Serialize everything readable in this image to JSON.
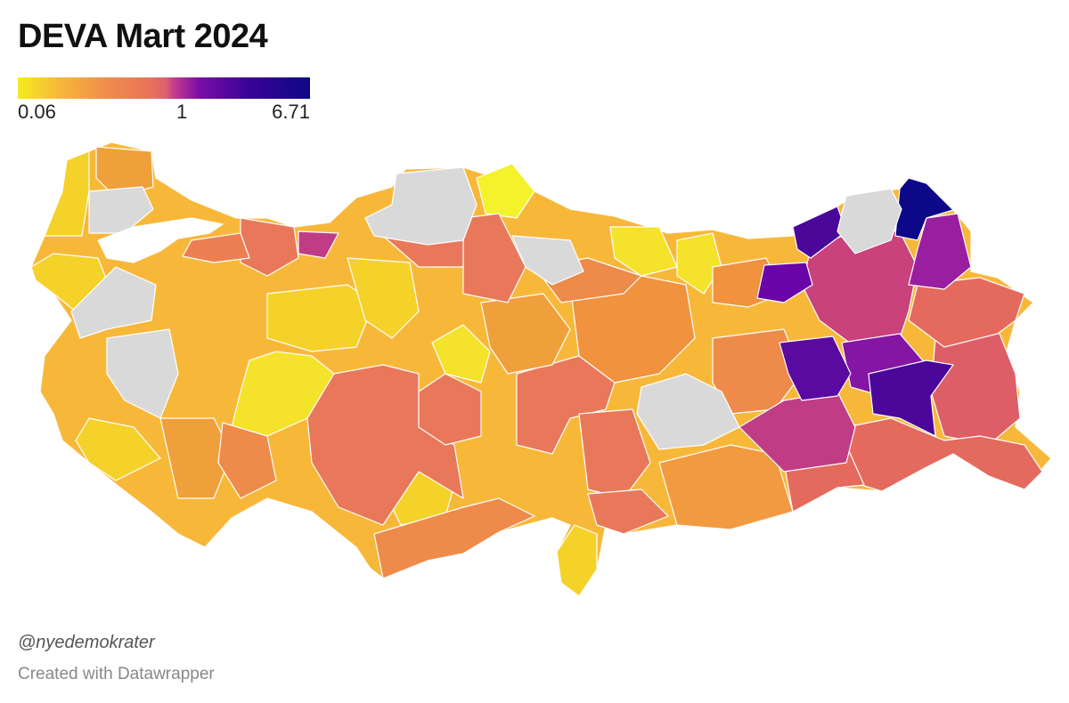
{
  "header": {
    "title": "DEVA Mart 2024"
  },
  "legend": {
    "min_label": "0.06",
    "mid_label": "1",
    "max_label": "6.71",
    "scale": {
      "min": 0.06,
      "mid": 1,
      "max": 6.71
    },
    "colors": [
      "#f5ec1e",
      "#f7b83a",
      "#ef8e4b",
      "#e9735a",
      "#dd5e72",
      "#c93f8c",
      "#7b0ea8",
      "#3d0397",
      "#0d0887"
    ],
    "no_data_color": "#d9d9d9"
  },
  "map": {
    "type": "choropleth",
    "region": "Turkey provinces",
    "base_color": "#f7b83a"
  },
  "footer": {
    "credit": "@nyedemokrater",
    "source": "Created with Datawrapper"
  }
}
